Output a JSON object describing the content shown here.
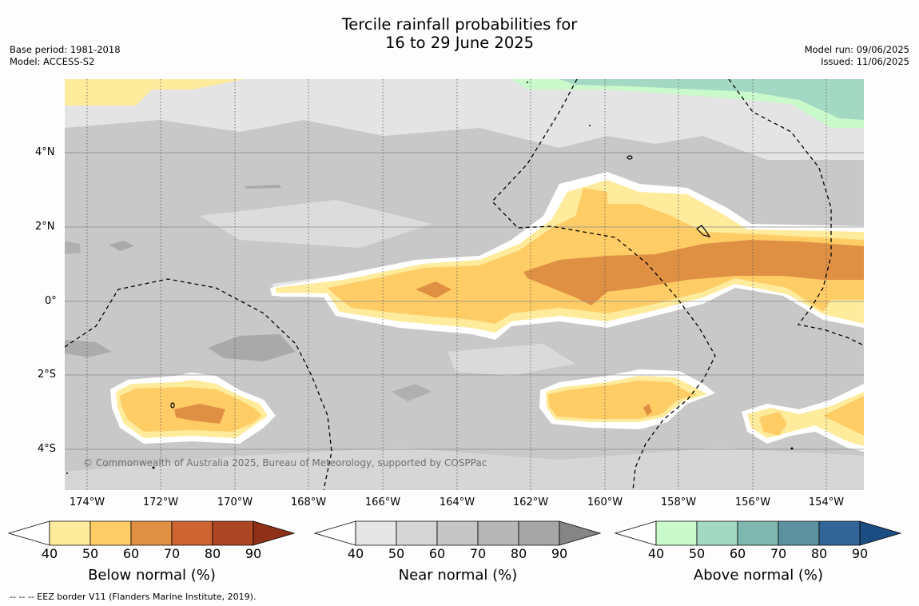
{
  "title": {
    "line1": "Tercile rainfall probabilities for",
    "line2": "16 to 29 June 2025"
  },
  "meta_left": {
    "base_period": "Base period: 1981-2018",
    "model": "Model: ACCESS-S2"
  },
  "meta_right": {
    "model_run": "Model run: 09/06/2025",
    "issued": "Issued: 11/06/2025"
  },
  "map": {
    "y_axis_labels": [
      "4°N",
      "2°N",
      "0°",
      "2°S",
      "4°S"
    ],
    "x_axis_labels": [
      "174°W",
      "172°W",
      "170°W",
      "168°W",
      "166°W",
      "164°W",
      "162°W",
      "160°W",
      "158°W",
      "156°W",
      "154°W"
    ],
    "copyright": "© Commonwealth of Australia 2025, Bureau of Meteorology, supported by COSPPac",
    "colors": {
      "near_normal_base": "#c8c8c8",
      "below_50": "#ffeb9c",
      "below_60": "#ffcc66",
      "below_70": "#df9043",
      "above_50": "#a3d8c3"
    }
  },
  "colorbars": [
    {
      "title": "Below normal (%)",
      "ticks": [
        "40",
        "50",
        "60",
        "70",
        "80",
        "90"
      ],
      "colors": [
        "#ffffff",
        "#ffeb9c",
        "#ffcc66",
        "#df9043",
        "#cd6432",
        "#ad4625",
        "#8f3119"
      ]
    },
    {
      "title": "Near normal (%)",
      "ticks": [
        "40",
        "50",
        "60",
        "70",
        "80",
        "90"
      ],
      "colors": [
        "#ffffff",
        "#e6e6e6",
        "#d6d6d6",
        "#c6c6c6",
        "#b6b6b6",
        "#a6a6a6",
        "#858585"
      ]
    },
    {
      "title": "Above normal (%)",
      "ticks": [
        "40",
        "50",
        "60",
        "70",
        "80",
        "90"
      ],
      "colors": [
        "#ffffff",
        "#caf9cb",
        "#a3d8c3",
        "#7db7b0",
        "#5c92a0",
        "#326498",
        "#1b4c82"
      ]
    }
  ],
  "footer": "--  --  -- EEZ border V11 (Flanders Marine Institute, 2019)."
}
